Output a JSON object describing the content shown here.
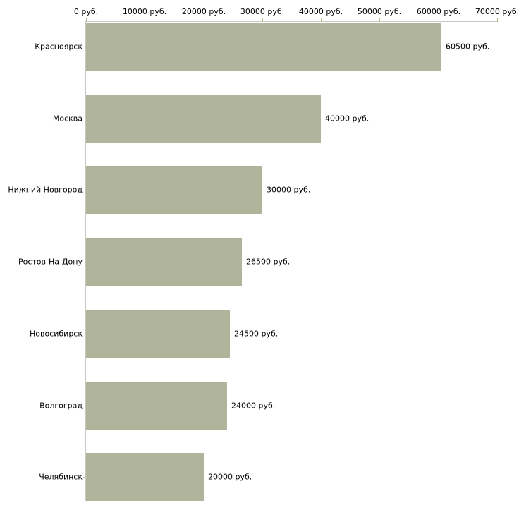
{
  "chart_data": {
    "type": "bar",
    "orientation": "horizontal",
    "title": "",
    "categories": [
      "Красноярск",
      "Москва",
      "Нижний Новгород",
      "Ростов-На-Дону",
      "Новосибирск",
      "Волгоград",
      "Челябинск"
    ],
    "values": [
      60500,
      40000,
      30000,
      26500,
      24500,
      24000,
      20000
    ],
    "value_labels": [
      "60500 руб.",
      "40000 руб.",
      "30000 руб.",
      "26500 руб.",
      "24500 руб.",
      "24000 руб.",
      "20000 руб."
    ],
    "x_axis": {
      "position": "top",
      "range": [
        0,
        70000
      ],
      "ticks": [
        0,
        10000,
        20000,
        30000,
        40000,
        50000,
        60000,
        70000
      ],
      "tick_labels": [
        "0 руб.",
        "10000 руб.",
        "20000 руб.",
        "30000 руб.",
        "40000 руб.",
        "50000 руб.",
        "60000 руб.",
        "70000 руб."
      ]
    },
    "grid": false,
    "legend": false,
    "colors": {
      "bar": "#afb49a",
      "axis_line": "#c8c8c3",
      "x_tick": "#b8ba92",
      "category_tick": "#c3c3bf",
      "text": "#000000",
      "background": "#ffffff"
    }
  }
}
